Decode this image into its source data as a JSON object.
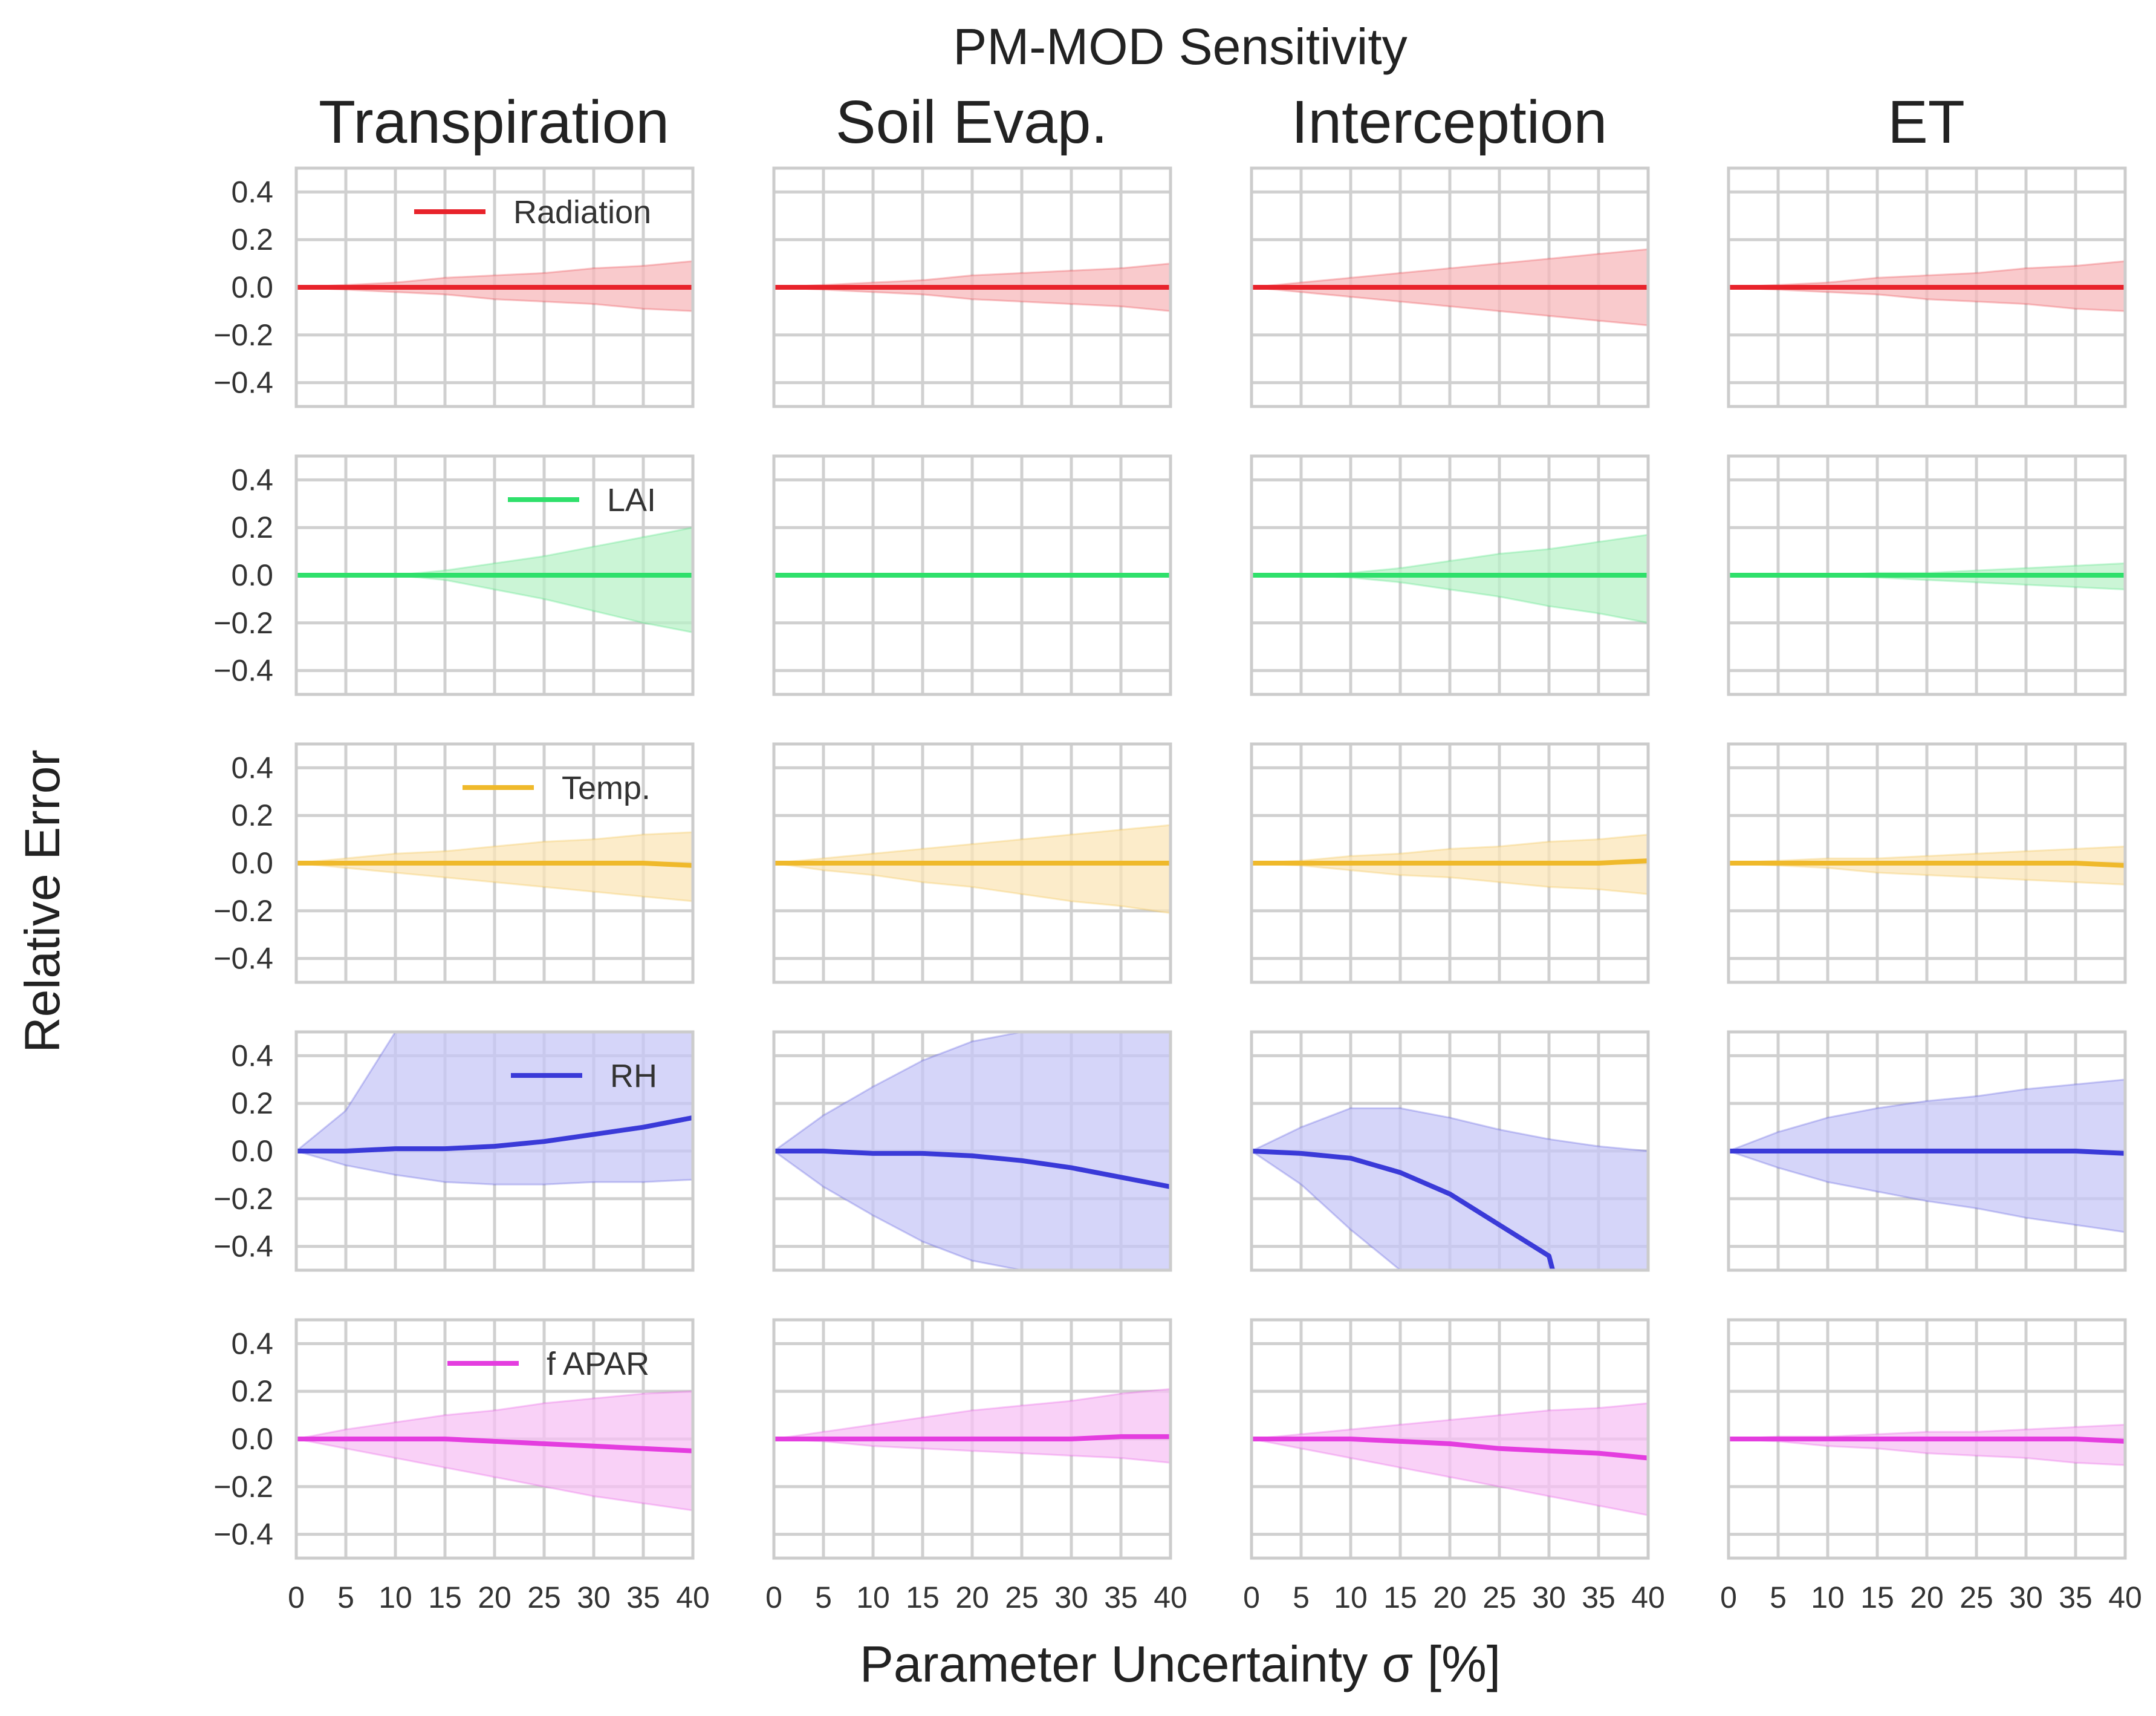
{
  "chart_data": {
    "type": "line",
    "title": "PM-MOD Sensitivity",
    "xlabel": "Parameter Uncertainty σ [%]",
    "ylabel": "Relative Error",
    "columns": [
      "Transpiration",
      "Soil Evap.",
      "Interception",
      "ET"
    ],
    "xlim": [
      0,
      40
    ],
    "ylim": [
      -0.5,
      0.5
    ],
    "x_ticks": [
      0,
      5,
      10,
      15,
      20,
      25,
      30,
      35,
      40
    ],
    "x_tick_labels": [
      "0",
      "5",
      "10",
      "15",
      "20",
      "25",
      "30",
      "35",
      "40"
    ],
    "y_ticks": [
      0.4,
      0.2,
      0.0,
      -0.2,
      -0.4
    ],
    "y_tick_labels": [
      "0.4",
      "0.2",
      "0.0",
      "−0.2",
      "−0.4"
    ],
    "grid": true,
    "x": [
      0,
      5,
      10,
      15,
      20,
      25,
      30,
      35,
      40
    ],
    "rows": [
      {
        "name": "Radiation",
        "color": "#e8232b",
        "fill": "#f7b8bb",
        "panels": [
          {
            "column": "Transpiration",
            "mean": [
              0,
              0,
              0,
              0,
              0,
              0,
              0,
              0,
              0
            ],
            "upper": [
              0,
              0.01,
              0.02,
              0.04,
              0.05,
              0.06,
              0.08,
              0.09,
              0.11
            ],
            "lower": [
              0,
              -0.01,
              -0.02,
              -0.03,
              -0.05,
              -0.06,
              -0.07,
              -0.09,
              -0.1
            ]
          },
          {
            "column": "Soil Evap.",
            "mean": [
              0,
              0,
              0,
              0,
              0,
              0,
              0,
              0,
              0
            ],
            "upper": [
              0,
              0.01,
              0.02,
              0.03,
              0.05,
              0.06,
              0.07,
              0.08,
              0.1
            ],
            "lower": [
              0,
              -0.01,
              -0.02,
              -0.03,
              -0.05,
              -0.06,
              -0.07,
              -0.08,
              -0.1
            ]
          },
          {
            "column": "Interception",
            "mean": [
              0,
              0,
              0,
              0,
              0,
              0,
              0,
              0,
              0
            ],
            "upper": [
              0,
              0.02,
              0.04,
              0.06,
              0.08,
              0.1,
              0.12,
              0.14,
              0.16
            ],
            "lower": [
              0,
              -0.02,
              -0.04,
              -0.06,
              -0.08,
              -0.1,
              -0.12,
              -0.14,
              -0.16
            ]
          },
          {
            "column": "ET",
            "mean": [
              0,
              0,
              0,
              0,
              0,
              0,
              0,
              0,
              0
            ],
            "upper": [
              0,
              0.01,
              0.02,
              0.04,
              0.05,
              0.06,
              0.08,
              0.09,
              0.11
            ],
            "lower": [
              0,
              -0.01,
              -0.02,
              -0.03,
              -0.05,
              -0.06,
              -0.07,
              -0.09,
              -0.1
            ]
          }
        ]
      },
      {
        "name": "LAI",
        "color": "#2fe06b",
        "fill": "#b9f2c8",
        "panels": [
          {
            "column": "Transpiration",
            "mean": [
              0,
              0,
              0,
              0,
              0,
              0,
              0,
              0,
              0
            ],
            "upper": [
              0,
              0,
              0,
              0.02,
              0.05,
              0.08,
              0.12,
              0.16,
              0.2
            ],
            "lower": [
              0,
              0,
              0,
              -0.02,
              -0.06,
              -0.1,
              -0.15,
              -0.2,
              -0.24
            ]
          },
          {
            "column": "Soil Evap.",
            "mean": [
              0,
              0,
              0,
              0,
              0,
              0,
              0,
              0,
              0
            ],
            "upper": [
              0,
              0,
              0,
              0,
              0,
              0,
              0,
              0,
              0
            ],
            "lower": [
              0,
              0,
              0,
              0,
              0,
              0,
              0,
              0,
              0
            ]
          },
          {
            "column": "Interception",
            "mean": [
              0,
              0,
              0,
              0,
              0,
              0,
              0,
              0,
              0
            ],
            "upper": [
              0,
              0,
              0.01,
              0.03,
              0.06,
              0.09,
              0.11,
              0.14,
              0.17
            ],
            "lower": [
              0,
              0,
              -0.01,
              -0.03,
              -0.06,
              -0.09,
              -0.13,
              -0.16,
              -0.2
            ]
          },
          {
            "column": "ET",
            "mean": [
              0,
              0,
              0,
              0,
              0,
              0,
              0,
              0,
              0
            ],
            "upper": [
              0,
              0,
              0,
              0.01,
              0.01,
              0.02,
              0.03,
              0.04,
              0.05
            ],
            "lower": [
              0,
              0,
              0,
              -0.01,
              -0.02,
              -0.03,
              -0.04,
              -0.05,
              -0.06
            ]
          }
        ]
      },
      {
        "name": "Temp.",
        "color": "#efb92b",
        "fill": "#fbe6b8",
        "panels": [
          {
            "column": "Transpiration",
            "mean": [
              0,
              0,
              0,
              0,
              0,
              0,
              0,
              0,
              -0.01
            ],
            "upper": [
              0,
              0.02,
              0.04,
              0.05,
              0.07,
              0.09,
              0.1,
              0.12,
              0.13
            ],
            "lower": [
              0,
              -0.02,
              -0.04,
              -0.06,
              -0.08,
              -0.1,
              -0.12,
              -0.14,
              -0.16
            ]
          },
          {
            "column": "Soil Evap.",
            "mean": [
              0,
              0,
              0,
              0,
              0,
              0,
              0,
              0,
              0
            ],
            "upper": [
              0,
              0.02,
              0.04,
              0.06,
              0.08,
              0.1,
              0.12,
              0.14,
              0.16
            ],
            "lower": [
              0,
              -0.03,
              -0.05,
              -0.08,
              -0.1,
              -0.13,
              -0.16,
              -0.18,
              -0.21
            ]
          },
          {
            "column": "Interception",
            "mean": [
              0,
              0,
              0,
              0,
              0,
              0,
              0,
              0,
              0.01
            ],
            "upper": [
              0,
              0.01,
              0.03,
              0.04,
              0.06,
              0.07,
              0.09,
              0.1,
              0.12
            ],
            "lower": [
              0,
              -0.01,
              -0.03,
              -0.05,
              -0.06,
              -0.08,
              -0.1,
              -0.11,
              -0.13
            ]
          },
          {
            "column": "ET",
            "mean": [
              0,
              0,
              0,
              0,
              0,
              0,
              0,
              0,
              -0.01
            ],
            "upper": [
              0,
              0.01,
              0.02,
              0.02,
              0.03,
              0.04,
              0.05,
              0.06,
              0.07
            ],
            "lower": [
              0,
              -0.01,
              -0.02,
              -0.04,
              -0.05,
              -0.06,
              -0.07,
              -0.08,
              -0.09
            ]
          }
        ]
      },
      {
        "name": "RH",
        "color": "#3a3ad8",
        "fill": "#c7c7f7",
        "panels": [
          {
            "column": "Transpiration",
            "mean": [
              0,
              0,
              0.01,
              0.01,
              0.02,
              0.04,
              0.07,
              0.1,
              0.14
            ],
            "upper": [
              0,
              0.17,
              0.5,
              0.5,
              0.5,
              0.5,
              0.5,
              0.5,
              0.5
            ],
            "lower": [
              0,
              -0.06,
              -0.1,
              -0.13,
              -0.14,
              -0.14,
              -0.13,
              -0.13,
              -0.12
            ]
          },
          {
            "column": "Soil Evap.",
            "mean": [
              0,
              0,
              -0.01,
              -0.01,
              -0.02,
              -0.04,
              -0.07,
              -0.11,
              -0.15
            ],
            "upper": [
              0,
              0.15,
              0.27,
              0.38,
              0.46,
              0.5,
              0.5,
              0.5,
              0.5
            ],
            "lower": [
              0,
              -0.15,
              -0.27,
              -0.38,
              -0.46,
              -0.5,
              -0.5,
              -0.5,
              -0.5
            ]
          },
          {
            "column": "Interception",
            "mean": [
              0,
              -0.01,
              -0.03,
              -0.09,
              -0.18,
              -0.31,
              -0.44,
              null,
              null
            ],
            "upper": [
              0,
              0.1,
              0.18,
              0.18,
              0.14,
              0.09,
              0.05,
              0.02,
              0.0
            ],
            "lower": [
              0,
              -0.14,
              -0.33,
              -0.5,
              -0.5,
              -0.5,
              -0.5,
              -0.5,
              -0.5
            ]
          },
          {
            "column": "ET",
            "mean": [
              0,
              0,
              0,
              0,
              0,
              0,
              0,
              0,
              -0.01
            ],
            "upper": [
              0,
              0.08,
              0.14,
              0.18,
              0.21,
              0.23,
              0.26,
              0.28,
              0.3
            ],
            "lower": [
              0,
              -0.07,
              -0.13,
              -0.17,
              -0.21,
              -0.24,
              -0.28,
              -0.31,
              -0.34
            ]
          }
        ]
      },
      {
        "name": "f APAR",
        "color": "#e43ddf",
        "fill": "#f7c1f4",
        "panels": [
          {
            "column": "Transpiration",
            "mean": [
              0,
              0,
              0,
              0,
              -0.01,
              -0.02,
              -0.03,
              -0.04,
              -0.05
            ],
            "upper": [
              0,
              0.04,
              0.07,
              0.1,
              0.12,
              0.15,
              0.17,
              0.19,
              0.2
            ],
            "lower": [
              0,
              -0.04,
              -0.08,
              -0.12,
              -0.16,
              -0.2,
              -0.24,
              -0.27,
              -0.3
            ]
          },
          {
            "column": "Soil Evap.",
            "mean": [
              0,
              0,
              0,
              0,
              0,
              0,
              0,
              0.01,
              0.01
            ],
            "upper": [
              0,
              0.03,
              0.06,
              0.09,
              0.12,
              0.14,
              0.16,
              0.19,
              0.21
            ],
            "lower": [
              0,
              -0.01,
              -0.03,
              -0.04,
              -0.05,
              -0.06,
              -0.07,
              -0.08,
              -0.1
            ]
          },
          {
            "column": "Interception",
            "mean": [
              0,
              0,
              0,
              -0.01,
              -0.02,
              -0.04,
              -0.05,
              -0.06,
              -0.08
            ],
            "upper": [
              0,
              0.02,
              0.04,
              0.06,
              0.08,
              0.1,
              0.12,
              0.13,
              0.15
            ],
            "lower": [
              0,
              -0.04,
              -0.08,
              -0.12,
              -0.16,
              -0.2,
              -0.24,
              -0.28,
              -0.32
            ]
          },
          {
            "column": "ET",
            "mean": [
              0,
              0,
              0,
              0,
              0,
              0,
              0,
              0,
              -0.01
            ],
            "upper": [
              0,
              0.01,
              0.01,
              0.02,
              0.03,
              0.03,
              0.04,
              0.05,
              0.06
            ],
            "lower": [
              0,
              -0.01,
              -0.03,
              -0.04,
              -0.06,
              -0.07,
              -0.08,
              -0.1,
              -0.11
            ]
          }
        ]
      }
    ]
  }
}
